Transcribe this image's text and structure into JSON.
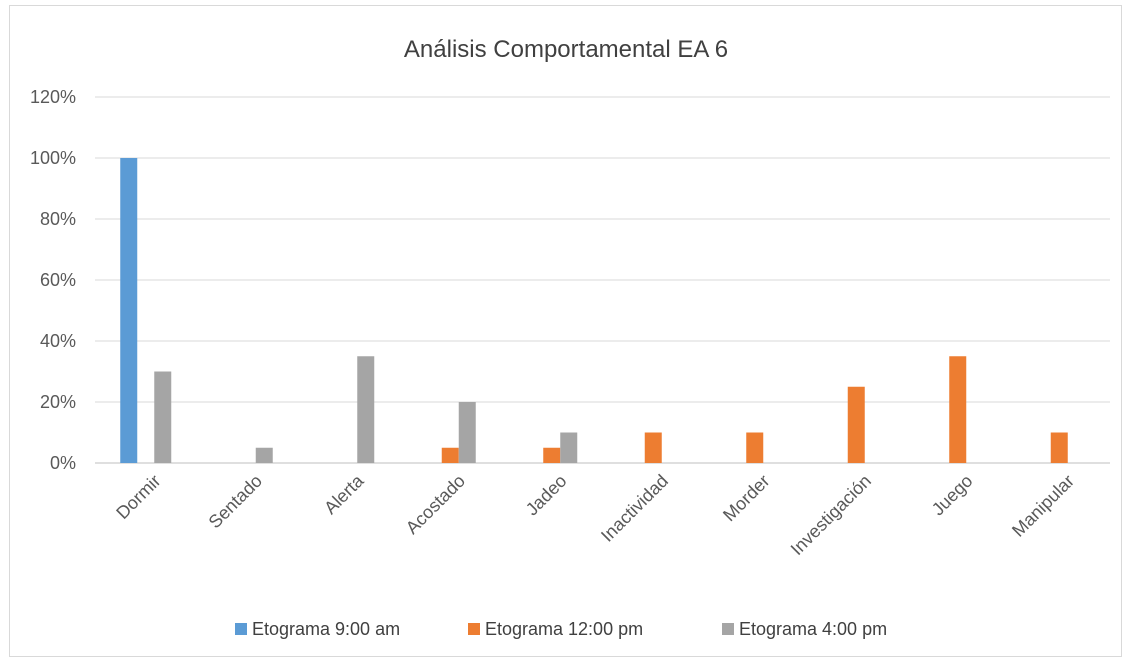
{
  "chart_data": {
    "type": "bar",
    "title": "Análisis Comportamental EA 6",
    "xlabel": "",
    "ylabel": "",
    "ylim": [
      0,
      120
    ],
    "y_ticks": [
      "0%",
      "20%",
      "40%",
      "60%",
      "80%",
      "100%",
      "120%"
    ],
    "y_tick_values": [
      0,
      20,
      40,
      60,
      80,
      100,
      120
    ],
    "grid": true,
    "legend_position": "bottom",
    "categories": [
      "Dormir",
      "Sentado",
      "Alerta",
      "Acostado",
      "Jadeo",
      "Inactividad",
      "Morder",
      "Investigación",
      "Juego",
      "Manipular"
    ],
    "series": [
      {
        "name": "Etograma 9:00 am",
        "color": "#5b9bd5",
        "values": [
          100,
          0,
          0,
          0,
          0,
          0,
          0,
          0,
          0,
          0
        ]
      },
      {
        "name": "Etograma 12:00 pm",
        "color": "#ed7d31",
        "values": [
          0,
          0,
          0,
          5,
          5,
          10,
          10,
          25,
          35,
          10
        ]
      },
      {
        "name": "Etograma 4:00 pm",
        "color": "#a5a5a5",
        "values": [
          30,
          5,
          35,
          20,
          10,
          0,
          0,
          0,
          0,
          0
        ]
      }
    ]
  }
}
